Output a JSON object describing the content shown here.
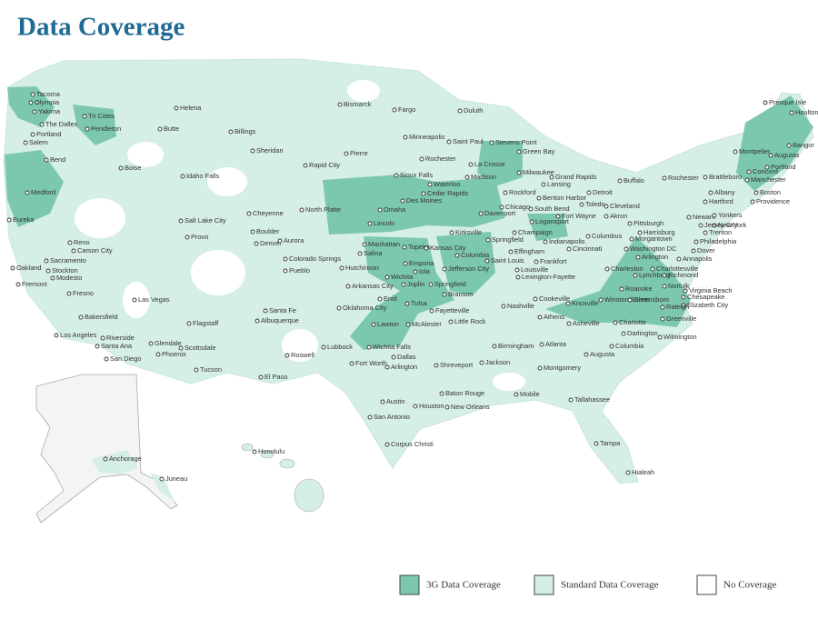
{
  "title": "Data Coverage",
  "cities": [
    "Tacoma",
    "Olympia",
    "Yakima",
    "Tri Cities",
    "The Dalles",
    "Pendleton",
    "Portland",
    "Salem",
    "Bend",
    "Medford",
    "Eureka",
    "Reno",
    "Carson City",
    "Sacramento",
    "Oakland",
    "Stockton",
    "Modesto",
    "Fremont",
    "Fresno",
    "Las Vegas",
    "Bakersfield",
    "Los Angeles",
    "Riverside",
    "Santa Ana",
    "San Diego",
    "Helena",
    "Butte",
    "Billings",
    "Boise",
    "Idaho Falls",
    "Sheridan",
    "Salt Lake City",
    "Provo",
    "Cheyenne",
    "Boulder",
    "Denver",
    "Aurora",
    "Colorado Springs",
    "Pueblo",
    "Flagstaff",
    "Glendale",
    "Scottsdale",
    "Phoenix",
    "Tucson",
    "Santa Fe",
    "Albuquerque",
    "Roswell",
    "El Paso",
    "Bismarck",
    "Fargo",
    "Pierre",
    "Rapid City",
    "North Platte",
    "Sioux Falls",
    "Omaha",
    "Lincoln",
    "Duluth",
    "Minneapolis",
    "Saint Paul",
    "Rochester",
    "La Crosse",
    "Madison",
    "Milwaukee",
    "Green Bay",
    "Stevens Point",
    "Waterloo",
    "Cedar Rapids",
    "Des Moines",
    "Davenport",
    "Rockford",
    "Chicago",
    "Kirksville",
    "Manhattan",
    "Topeka",
    "Kansas City",
    "Salina",
    "Emporia",
    "Hutchinson",
    "Wichita",
    "Iola",
    "Columbia",
    "Jefferson City",
    "Saint Louis",
    "Springfield",
    "Springfield",
    "Joplin",
    "Arkansas City",
    "Branson",
    "Enid",
    "Tulsa",
    "Oklahoma City",
    "Lawton",
    "McAlester",
    "Fayetteville",
    "Little Rock",
    "Lubbock",
    "Wichita Falls",
    "Dallas",
    "Arlington",
    "Fort Worth",
    "Shreveport",
    "Jackson",
    "Austin",
    "Houston",
    "San Antonio",
    "Corpus Christi",
    "Baton Rouge",
    "New Orleans",
    "Birmingham",
    "Atlanta",
    "Montgomery",
    "Mobile",
    "Tallahassee",
    "Tampa",
    "Hialeah",
    "Champaign",
    "Effingham",
    "Indianapolis",
    "Cincinnati",
    "Louisville",
    "Frankfort",
    "Lexington-Fayette",
    "Nashville",
    "Cookeville",
    "Knoxville",
    "Athens",
    "Asheville",
    "Columbus",
    "Fort Wayne",
    "South Bend",
    "Benton Harbor",
    "Lansing",
    "Grand Rapids",
    "Detroit",
    "Toledo",
    "Cleveland",
    "Akron",
    "Logansport",
    "Pittsburgh",
    "Harrisburg",
    "Morgantown",
    "Washington DC",
    "Arlington",
    "Annapolis",
    "Charleston",
    "Lynchburg",
    "Charlottesville",
    "Richmond",
    "Roanoke",
    "Norfolk",
    "Virginia Beach",
    "Chesapeake",
    "Elizabeth City",
    "Winston Salem",
    "Greensboro",
    "Raleigh",
    "Greenville",
    "Charlotte",
    "Darlington",
    "Columbia",
    "Augusta",
    "Wilmington",
    "Buffalo",
    "Rochester",
    "Albany",
    "Brattleboro",
    "Montpelier",
    "Concord",
    "Manchester",
    "Boston",
    "Hartford",
    "Providence",
    "Newark",
    "Yonkers",
    "New York",
    "Jersey City",
    "Trenton",
    "Philadelphia",
    "Dover",
    "Presque Isle",
    "Houlton",
    "Bangor",
    "Augusta",
    "Portland",
    "Honolulu",
    "Anchorage",
    "Juneau"
  ],
  "legend": [
    {
      "label": "3G Data Coverage",
      "color": "#7cc8ad"
    },
    {
      "label": "Standard Data Coverage",
      "color": "#d6efe5"
    },
    {
      "label": "No Coverage",
      "color": "#ffffff"
    }
  ]
}
